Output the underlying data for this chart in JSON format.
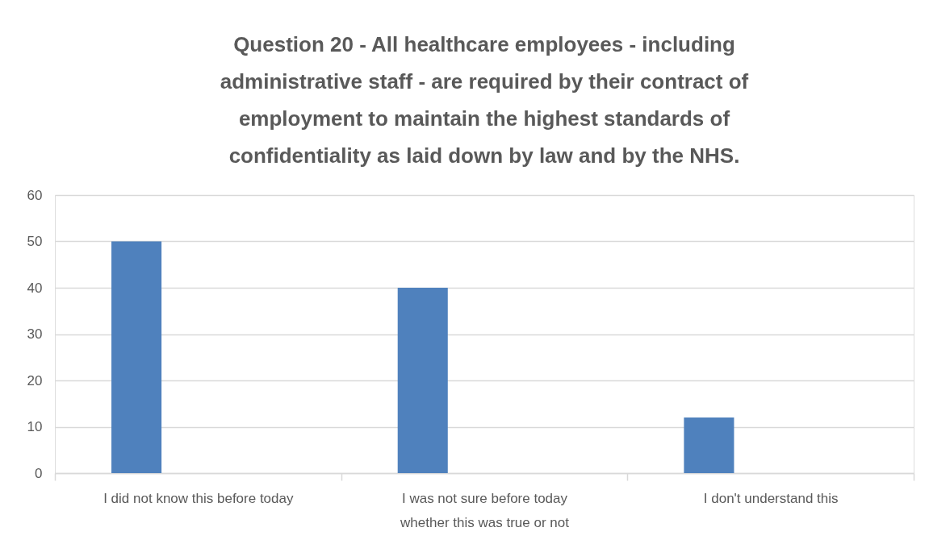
{
  "chart_data": {
    "type": "bar",
    "title": "Question 20 - All healthcare employees - including administrative staff - are required by their contract of employment to maintain the highest standards of confidentiality as laid down by law and by the NHS.",
    "categories": [
      "I did not know this before today",
      "I was not sure before today whether this was true or not",
      "I don't understand this"
    ],
    "values": [
      50,
      40,
      12
    ],
    "color": "#4f81bd",
    "ylim": [
      0,
      60
    ],
    "yticks": [
      0,
      10,
      20,
      30,
      40,
      50,
      60
    ],
    "grid": "y"
  }
}
